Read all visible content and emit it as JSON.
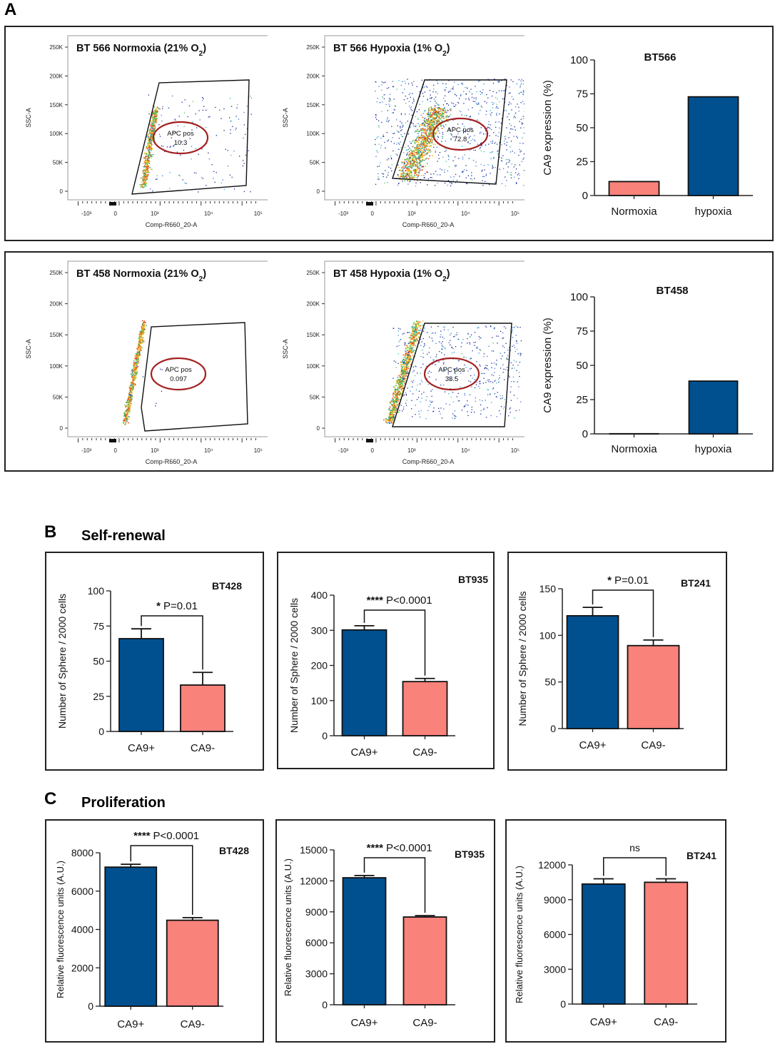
{
  "panels": {
    "a": "A",
    "b": "B",
    "c": "C"
  },
  "sections": {
    "self_renewal": "Self-renewal",
    "proliferation": "Proliferation"
  },
  "chart_data": [
    {
      "type": "scatter",
      "id": "flow_bt566_norm",
      "title_main": "BT 566 Normoxia (21% O",
      "title_sub": "2",
      "title_end": ")",
      "xlabel": "Comp-R660_20-A",
      "ylabel": "SSC-A",
      "yticks": [
        "0",
        "50K",
        "100K",
        "150K",
        "200K",
        "250K"
      ],
      "xticks": [
        "-10³",
        "0",
        "10³",
        "10⁴",
        "10⁵"
      ],
      "gate_label": "APC pos",
      "gate_value": "10.3"
    },
    {
      "type": "scatter",
      "id": "flow_bt566_hyp",
      "title_main": "BT 566 Hypoxia (1% O",
      "title_sub": "2",
      "title_end": ")",
      "xlabel": "Comp-R660_20-A",
      "ylabel": "SSC-A",
      "yticks": [
        "0",
        "50K",
        "100K",
        "150K",
        "200K",
        "250K"
      ],
      "xticks": [
        "-10³",
        "0",
        "10³",
        "10⁴",
        "10⁵"
      ],
      "gate_label": "APC pos",
      "gate_value": "72.8"
    },
    {
      "type": "bar",
      "id": "bar_bt566",
      "title": "BT566",
      "ylabel": "CA9 expression (%)",
      "categories": [
        "Normoxia",
        "hypoxia"
      ],
      "values": [
        10.3,
        72.8
      ],
      "ylim": [
        0,
        100
      ],
      "yticks": [
        0,
        25,
        50,
        75,
        100
      ],
      "colors": [
        "#f9827b",
        "#00508f"
      ]
    },
    {
      "type": "scatter",
      "id": "flow_bt458_norm",
      "title_main": "BT 458 Normoxia (21% O",
      "title_sub": "2",
      "title_end": ")",
      "xlabel": "Comp-R660_20-A",
      "ylabel": "SSC-A",
      "yticks": [
        "0",
        "50K",
        "100K",
        "150K",
        "200K",
        "250K"
      ],
      "xticks": [
        "-10³",
        "0",
        "10³",
        "10⁴",
        "10⁵"
      ],
      "gate_label": "APC pos",
      "gate_value": "0.097"
    },
    {
      "type": "scatter",
      "id": "flow_bt458_hyp",
      "title_main": "BT 458 Hypoxia (1% O",
      "title_sub": "2",
      "title_end": ")",
      "xlabel": "Comp-R660_20-A",
      "ylabel": "SSC-A",
      "yticks": [
        "0",
        "50K",
        "100K",
        "150K",
        "200K",
        "250K"
      ],
      "xticks": [
        "-10³",
        "0",
        "10³",
        "10⁴",
        "10⁵"
      ],
      "gate_label": "APC pos",
      "gate_value": "38.5"
    },
    {
      "type": "bar",
      "id": "bar_bt458",
      "title": "BT458",
      "ylabel": "CA9 expression (%)",
      "categories": [
        "Normoxia",
        "hypoxia"
      ],
      "values": [
        0.097,
        38.5
      ],
      "ylim": [
        0,
        100
      ],
      "yticks": [
        0,
        25,
        50,
        75,
        100
      ],
      "colors": [
        "#f9827b",
        "#00508f"
      ]
    },
    {
      "type": "bar",
      "id": "sr_bt428",
      "title": "BT428",
      "ylabel": "Number of Sphere / 2000 cells",
      "categories": [
        "CA9+",
        "CA9-"
      ],
      "values": [
        66,
        33
      ],
      "errors": [
        7,
        9
      ],
      "ylim": [
        0,
        100
      ],
      "yticks": [
        0,
        25,
        50,
        75,
        100
      ],
      "sig_stars": "*",
      "sig_text": "P=0.01",
      "colors": [
        "#00508f",
        "#f9827b"
      ]
    },
    {
      "type": "bar",
      "id": "sr_bt935",
      "title": "BT935",
      "ylabel": "Number of Sphere / 2000 cells",
      "categories": [
        "CA9+",
        "CA9-"
      ],
      "values": [
        301,
        154
      ],
      "errors": [
        12,
        9
      ],
      "ylim": [
        0,
        400
      ],
      "yticks": [
        0,
        100,
        200,
        300,
        400
      ],
      "sig_stars": "****",
      "sig_text": "P<0.0001",
      "colors": [
        "#00508f",
        "#f9827b"
      ]
    },
    {
      "type": "bar",
      "id": "sr_bt241",
      "title": "BT241",
      "ylabel": "Number of Sphere / 2000 cells",
      "categories": [
        "CA9+",
        "CA9-"
      ],
      "values": [
        121,
        89
      ],
      "errors": [
        9,
        6
      ],
      "ylim": [
        0,
        150
      ],
      "yticks": [
        0,
        50,
        100,
        150
      ],
      "sig_stars": "*",
      "sig_text": "P=0.01",
      "colors": [
        "#00508f",
        "#f9827b"
      ]
    },
    {
      "type": "bar",
      "id": "pr_bt428",
      "title": "BT428",
      "ylabel": "Relative fluorescence units (A.U.)",
      "categories": [
        "CA9+",
        "CA9-"
      ],
      "values": [
        7250,
        4480
      ],
      "errors": [
        150,
        140
      ],
      "ylim": [
        0,
        8000
      ],
      "yticks": [
        0,
        2000,
        4000,
        6000,
        8000
      ],
      "sig_stars": "****",
      "sig_text": "P<0.0001",
      "colors": [
        "#00508f",
        "#f9827b"
      ]
    },
    {
      "type": "bar",
      "id": "pr_bt935",
      "title": "BT935",
      "ylabel": "Relative fluorescence units (A.U.)",
      "categories": [
        "CA9+",
        "CA9-"
      ],
      "values": [
        12300,
        8500
      ],
      "errors": [
        220,
        130
      ],
      "ylim": [
        0,
        15000
      ],
      "yticks": [
        0,
        3000,
        6000,
        9000,
        12000,
        15000
      ],
      "sig_stars": "****",
      "sig_text": "P<0.0001",
      "colors": [
        "#00508f",
        "#f9827b"
      ]
    },
    {
      "type": "bar",
      "id": "pr_bt241",
      "title": "BT241",
      "ylabel": "Relative fluorescence units (A.U.)",
      "categories": [
        "CA9+",
        "CA9-"
      ],
      "values": [
        10350,
        10500
      ],
      "errors": [
        450,
        300
      ],
      "ylim": [
        0,
        12000
      ],
      "yticks": [
        0,
        3000,
        6000,
        9000,
        12000
      ],
      "sig_stars": "",
      "sig_text": "ns",
      "colors": [
        "#00508f",
        "#f9827b"
      ]
    }
  ]
}
